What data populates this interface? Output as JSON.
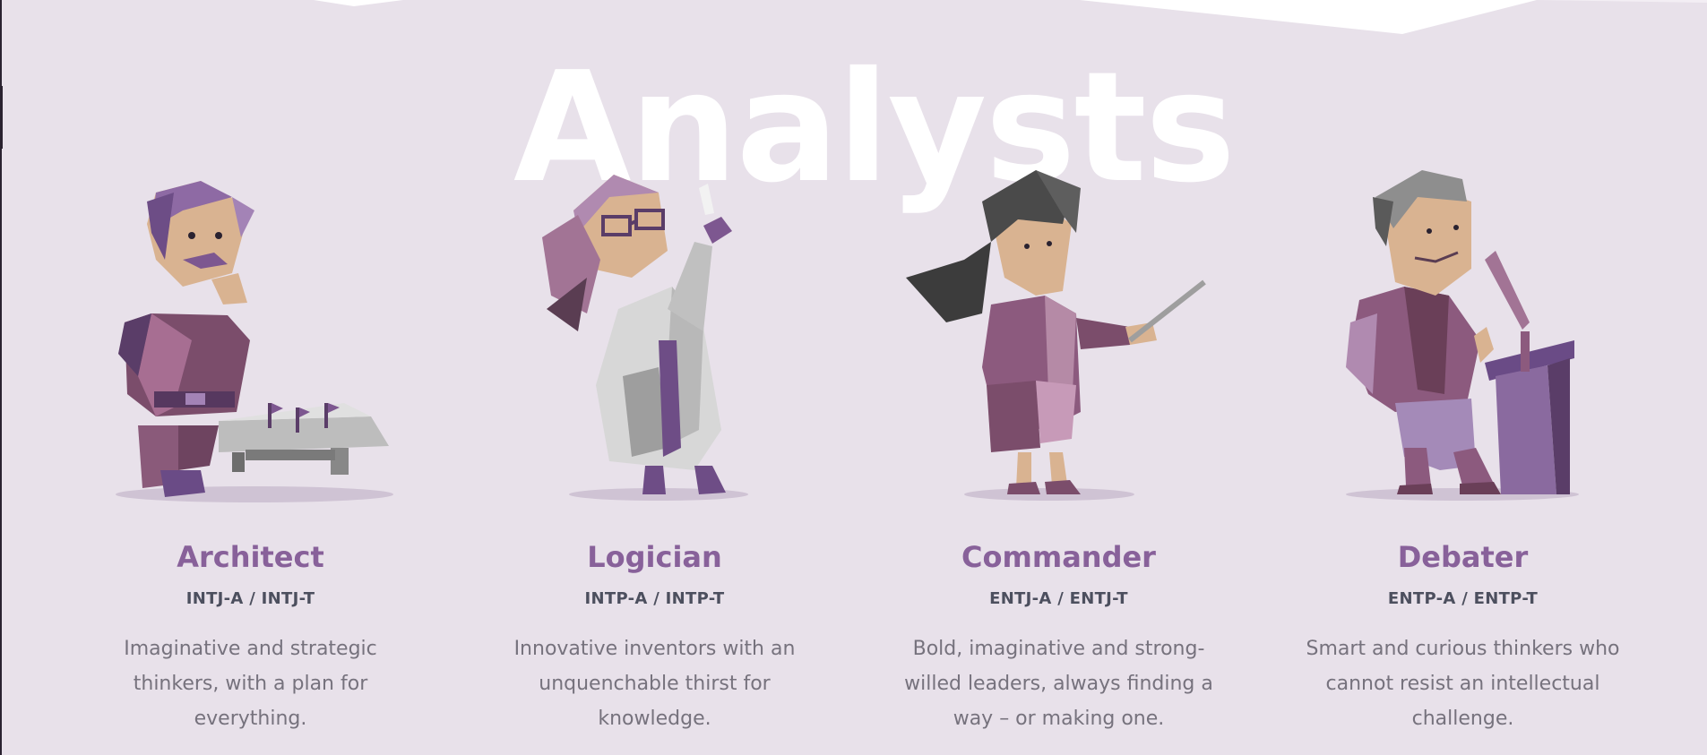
{
  "section": {
    "title": "Analysts"
  },
  "cards": [
    {
      "name": "Architect",
      "code": "INTJ-A / INTJ-T",
      "description": "Imaginative and strategic thinkers, with a plan for everything.",
      "illustration": "architect-figure"
    },
    {
      "name": "Logician",
      "code": "INTP-A / INTP-T",
      "description": "Innovative inventors with an unquenchable thirst for knowledge.",
      "illustration": "logician-figure"
    },
    {
      "name": "Commander",
      "code": "ENTJ-A / ENTJ-T",
      "description": "Bold, imaginative and strong-willed leaders, always finding a way – or making one.",
      "illustration": "commander-figure"
    },
    {
      "name": "Debater",
      "code": "ENTP-A / ENTP-T",
      "description": "Smart and curious thinkers who cannot resist an intellectual challenge.",
      "illustration": "debater-figure"
    }
  ],
  "colors": {
    "background": "#e8e1ea",
    "accent": "#88619a",
    "code_text": "#4c4f5e",
    "body_text": "#76727d"
  }
}
